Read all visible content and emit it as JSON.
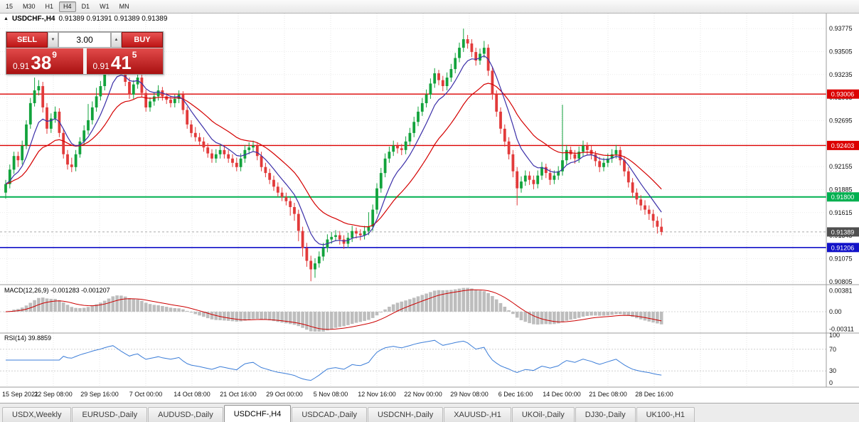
{
  "toolbar": {
    "timeframes": [
      "15",
      "M30",
      "H1",
      "H4",
      "D1",
      "W1",
      "MN"
    ],
    "active": "H4"
  },
  "chart": {
    "symbol_title": "USDCHF-,H4",
    "ohlc_text": "0.91389 0.91391 0.91389 0.91389",
    "collapse_icon": "▲"
  },
  "one_click": {
    "sell_label": "SELL",
    "buy_label": "BUY",
    "volume": "3.00",
    "spin_down_icon": "▼",
    "spin_up_icon": "▲",
    "sell_price": {
      "small": "0.91",
      "big": "38",
      "sup": "9"
    },
    "buy_price": {
      "small": "0.91",
      "big": "41",
      "sup": "5"
    }
  },
  "price_axis": {
    "values": [
      0.93775,
      0.93505,
      0.93235,
      0.92965,
      0.92695,
      0.92425,
      0.92155,
      0.91885,
      0.91615,
      0.91345,
      0.91075,
      0.90805
    ]
  },
  "hlines": [
    {
      "value": 0.93006,
      "label": "0.93006",
      "color": "#dc0000",
      "width": 1.4
    },
    {
      "value": 0.92403,
      "label": "0.92403",
      "color": "#dc0000",
      "width": 1.4
    },
    {
      "value": 0.918,
      "label": "0.91800",
      "color": "#00b050",
      "width": 2
    },
    {
      "value": 0.91206,
      "label": "0.91206",
      "color": "#1212c8",
      "width": 1.6
    }
  ],
  "bid": {
    "value": 0.91389,
    "label": "0.91389",
    "color": "#4f4f4f"
  },
  "macd": {
    "name": "MACD(12,26,9)",
    "values": "-0.001283 -0.001207",
    "axis": [
      {
        "label": "0.00381",
        "value": 0.00381
      },
      {
        "label": "0.00",
        "value": 0
      },
      {
        "label": "-0.00311",
        "value": -0.00311
      }
    ]
  },
  "rsi": {
    "name": "RSI(14)",
    "value": "39.8859",
    "axis": [
      {
        "label": "100",
        "value": 100
      },
      {
        "label": "70",
        "value": 70
      },
      {
        "label": "30",
        "value": 30
      },
      {
        "label": "0",
        "value": 0
      }
    ],
    "levels": [
      70,
      30
    ]
  },
  "time_axis": {
    "labels": [
      "15 Sep 2021",
      "22 Sep 08:00",
      "29 Sep 16:00",
      "7 Oct 00:00",
      "14 Oct 08:00",
      "21 Oct 16:00",
      "29 Oct 00:00",
      "5 Nov 08:00",
      "12 Nov 16:00",
      "22 Nov 00:00",
      "29 Nov 08:00",
      "6 Dec 16:00",
      "14 Dec 00:00",
      "21 Dec 08:00",
      "28 Dec 16:00"
    ]
  },
  "tabs": {
    "active_index": 3,
    "items": [
      "USDX,Weekly",
      "EURUSD-,Daily",
      "AUDUSD-,Daily",
      "USDCHF-,H4",
      "USDCAD-,Daily",
      "USDCNH-,Daily",
      "XAUUSD-,H1",
      "UKOil-,Daily",
      "DJ30-,Daily",
      "UK100-,H1"
    ]
  },
  "chart_data": {
    "type": "candlestick",
    "symbol": "USDCHF-",
    "timeframe": "H4",
    "price_range": [
      0.9077,
      0.9396
    ],
    "ma_periods": {
      "fast": 8,
      "slow": 21
    },
    "indicators": {
      "macd": [
        12,
        26,
        9
      ],
      "rsi": 14
    },
    "colors": {
      "up": "#12a33c",
      "down": "#e23a3a",
      "ma_fast": "#3b2fa8",
      "ma_slow": "#d40000",
      "macd_hist": "#bdbdbd",
      "macd_signal": "#cc0000",
      "rsi": "#3b7dd8"
    },
    "candles": [
      [
        0.9185,
        0.92,
        0.9178,
        0.9195
      ],
      [
        0.9195,
        0.9218,
        0.919,
        0.9212
      ],
      [
        0.9212,
        0.9233,
        0.9207,
        0.9228
      ],
      [
        0.9228,
        0.9233,
        0.9215,
        0.9223
      ],
      [
        0.9223,
        0.9246,
        0.9218,
        0.924
      ],
      [
        0.924,
        0.927,
        0.9236,
        0.9265
      ],
      [
        0.9265,
        0.9296,
        0.926,
        0.929
      ],
      [
        0.929,
        0.932,
        0.9286,
        0.9305
      ],
      [
        0.9305,
        0.9317,
        0.9299,
        0.931
      ],
      [
        0.931,
        0.9315,
        0.9279,
        0.9285
      ],
      [
        0.9285,
        0.929,
        0.9254,
        0.926
      ],
      [
        0.926,
        0.9278,
        0.9255,
        0.9272
      ],
      [
        0.9272,
        0.9286,
        0.9267,
        0.928
      ],
      [
        0.928,
        0.9284,
        0.925,
        0.9255
      ],
      [
        0.9255,
        0.926,
        0.9225,
        0.923
      ],
      [
        0.923,
        0.9235,
        0.9212,
        0.9218
      ],
      [
        0.9218,
        0.9226,
        0.9209,
        0.9215
      ],
      [
        0.9215,
        0.9235,
        0.921,
        0.923
      ],
      [
        0.923,
        0.925,
        0.9226,
        0.9245
      ],
      [
        0.9245,
        0.9264,
        0.924,
        0.9258
      ],
      [
        0.9258,
        0.9289,
        0.9253,
        0.927
      ],
      [
        0.927,
        0.9292,
        0.9265,
        0.9285
      ],
      [
        0.9285,
        0.9308,
        0.928,
        0.9298
      ],
      [
        0.9298,
        0.9316,
        0.9293,
        0.931
      ],
      [
        0.931,
        0.9334,
        0.9305,
        0.9328
      ],
      [
        0.9328,
        0.9351,
        0.9323,
        0.9345
      ],
      [
        0.9345,
        0.9368,
        0.934,
        0.936
      ],
      [
        0.936,
        0.9364,
        0.9341,
        0.9346
      ],
      [
        0.9346,
        0.935,
        0.9325,
        0.933
      ],
      [
        0.933,
        0.9335,
        0.931,
        0.9315
      ],
      [
        0.9315,
        0.932,
        0.9295,
        0.93
      ],
      [
        0.93,
        0.9317,
        0.9295,
        0.9312
      ],
      [
        0.9312,
        0.9326,
        0.9307,
        0.932
      ],
      [
        0.932,
        0.9324,
        0.9297,
        0.9302
      ],
      [
        0.9302,
        0.9306,
        0.928,
        0.9285
      ],
      [
        0.9285,
        0.9297,
        0.928,
        0.9292
      ],
      [
        0.9292,
        0.9303,
        0.9287,
        0.9298
      ],
      [
        0.9298,
        0.9311,
        0.9293,
        0.9305
      ],
      [
        0.9305,
        0.9309,
        0.9293,
        0.9298
      ],
      [
        0.9298,
        0.9302,
        0.9289,
        0.9294
      ],
      [
        0.9294,
        0.9299,
        0.9285,
        0.929
      ],
      [
        0.929,
        0.93,
        0.9285,
        0.9295
      ],
      [
        0.9295,
        0.9305,
        0.929,
        0.93
      ],
      [
        0.93,
        0.9304,
        0.9277,
        0.9282
      ],
      [
        0.9282,
        0.9286,
        0.926,
        0.9265
      ],
      [
        0.9265,
        0.927,
        0.925,
        0.9255
      ],
      [
        0.9255,
        0.9262,
        0.9245,
        0.925
      ],
      [
        0.925,
        0.9255,
        0.924,
        0.9245
      ],
      [
        0.9245,
        0.925,
        0.9233,
        0.9238
      ],
      [
        0.9238,
        0.9243,
        0.9226,
        0.9231
      ],
      [
        0.9231,
        0.9236,
        0.922,
        0.9225
      ],
      [
        0.9225,
        0.9236,
        0.922,
        0.923
      ],
      [
        0.923,
        0.9241,
        0.9225,
        0.9235
      ],
      [
        0.9235,
        0.924,
        0.9225,
        0.923
      ],
      [
        0.923,
        0.9235,
        0.922,
        0.9225
      ],
      [
        0.9225,
        0.923,
        0.9215,
        0.922
      ],
      [
        0.922,
        0.9226,
        0.921,
        0.9215
      ],
      [
        0.9215,
        0.9231,
        0.921,
        0.9225
      ],
      [
        0.9225,
        0.9241,
        0.922,
        0.9235
      ],
      [
        0.9235,
        0.9244,
        0.923,
        0.9238
      ],
      [
        0.9238,
        0.9246,
        0.9233,
        0.924
      ],
      [
        0.924,
        0.9244,
        0.9223,
        0.9228
      ],
      [
        0.9228,
        0.9233,
        0.921,
        0.9215
      ],
      [
        0.9215,
        0.922,
        0.9203,
        0.9208
      ],
      [
        0.9208,
        0.9213,
        0.9195,
        0.92
      ],
      [
        0.92,
        0.9205,
        0.9187,
        0.9192
      ],
      [
        0.9192,
        0.9197,
        0.918,
        0.9185
      ],
      [
        0.9185,
        0.9191,
        0.9175,
        0.918
      ],
      [
        0.918,
        0.9185,
        0.917,
        0.9175
      ],
      [
        0.9175,
        0.918,
        0.9158,
        0.9168
      ],
      [
        0.9168,
        0.9173,
        0.9152,
        0.916
      ],
      [
        0.916,
        0.9165,
        0.9128,
        0.914
      ],
      [
        0.914,
        0.9145,
        0.911,
        0.912
      ],
      [
        0.912,
        0.9126,
        0.9098,
        0.9105
      ],
      [
        0.9105,
        0.9111,
        0.9081,
        0.9095
      ],
      [
        0.9095,
        0.9108,
        0.9085,
        0.9102
      ],
      [
        0.9102,
        0.9116,
        0.9097,
        0.911
      ],
      [
        0.911,
        0.9126,
        0.9105,
        0.912
      ],
      [
        0.912,
        0.9136,
        0.9115,
        0.913
      ],
      [
        0.913,
        0.9139,
        0.9125,
        0.9133
      ],
      [
        0.9133,
        0.9141,
        0.9128,
        0.9135
      ],
      [
        0.9135,
        0.914,
        0.9124,
        0.913
      ],
      [
        0.913,
        0.9135,
        0.9119,
        0.9125
      ],
      [
        0.9125,
        0.9138,
        0.912,
        0.9132
      ],
      [
        0.9132,
        0.9146,
        0.9127,
        0.914
      ],
      [
        0.914,
        0.9144,
        0.9131,
        0.9137
      ],
      [
        0.9137,
        0.9142,
        0.9129,
        0.9135
      ],
      [
        0.9135,
        0.9146,
        0.913,
        0.914
      ],
      [
        0.914,
        0.9162,
        0.9135,
        0.9145
      ],
      [
        0.9145,
        0.9171,
        0.914,
        0.9165
      ],
      [
        0.9165,
        0.9196,
        0.916,
        0.919
      ],
      [
        0.919,
        0.9214,
        0.9185,
        0.9208
      ],
      [
        0.9208,
        0.9231,
        0.9203,
        0.9225
      ],
      [
        0.9225,
        0.9239,
        0.922,
        0.9233
      ],
      [
        0.9233,
        0.9246,
        0.9228,
        0.924
      ],
      [
        0.924,
        0.9244,
        0.9231,
        0.9237
      ],
      [
        0.9237,
        0.9242,
        0.9229,
        0.9235
      ],
      [
        0.9235,
        0.9251,
        0.923,
        0.9245
      ],
      [
        0.9245,
        0.9261,
        0.924,
        0.9255
      ],
      [
        0.9255,
        0.9274,
        0.925,
        0.9268
      ],
      [
        0.9268,
        0.9286,
        0.9263,
        0.928
      ],
      [
        0.928,
        0.9296,
        0.9275,
        0.929
      ],
      [
        0.929,
        0.9306,
        0.9285,
        0.93
      ],
      [
        0.93,
        0.9319,
        0.9295,
        0.9313
      ],
      [
        0.9313,
        0.9331,
        0.9308,
        0.9325
      ],
      [
        0.9325,
        0.9329,
        0.9311,
        0.9317
      ],
      [
        0.9317,
        0.9322,
        0.9304,
        0.931
      ],
      [
        0.931,
        0.9326,
        0.9305,
        0.932
      ],
      [
        0.932,
        0.9336,
        0.9315,
        0.933
      ],
      [
        0.933,
        0.9349,
        0.9325,
        0.9343
      ],
      [
        0.9343,
        0.9361,
        0.9338,
        0.9355
      ],
      [
        0.9355,
        0.93775,
        0.935,
        0.9365
      ],
      [
        0.9365,
        0.937,
        0.9354,
        0.936
      ],
      [
        0.936,
        0.9365,
        0.9344,
        0.935
      ],
      [
        0.935,
        0.9355,
        0.9334,
        0.934
      ],
      [
        0.934,
        0.9354,
        0.9335,
        0.9348
      ],
      [
        0.9348,
        0.9363,
        0.9343,
        0.9355
      ],
      [
        0.9355,
        0.9359,
        0.9322,
        0.9328
      ],
      [
        0.9328,
        0.9333,
        0.9294,
        0.93
      ],
      [
        0.93,
        0.9305,
        0.9274,
        0.928
      ],
      [
        0.928,
        0.9285,
        0.9254,
        0.926
      ],
      [
        0.926,
        0.9265,
        0.9239,
        0.9245
      ],
      [
        0.9245,
        0.925,
        0.9224,
        0.923
      ],
      [
        0.923,
        0.9235,
        0.9203,
        0.921
      ],
      [
        0.921,
        0.9215,
        0.917,
        0.919
      ],
      [
        0.919,
        0.9204,
        0.9185,
        0.9198
      ],
      [
        0.9198,
        0.9211,
        0.9193,
        0.9205
      ],
      [
        0.9205,
        0.921,
        0.9194,
        0.92
      ],
      [
        0.92,
        0.9205,
        0.9189,
        0.9195
      ],
      [
        0.9195,
        0.9211,
        0.919,
        0.9205
      ],
      [
        0.9205,
        0.9221,
        0.92,
        0.9215
      ],
      [
        0.9215,
        0.9219,
        0.9202,
        0.9208
      ],
      [
        0.9208,
        0.9213,
        0.9194,
        0.92
      ],
      [
        0.92,
        0.9211,
        0.9195,
        0.9205
      ],
      [
        0.9205,
        0.9216,
        0.92,
        0.921
      ],
      [
        0.921,
        0.9288,
        0.9205,
        0.9223
      ],
      [
        0.9223,
        0.9241,
        0.9218,
        0.9235
      ],
      [
        0.9235,
        0.9239,
        0.9224,
        0.923
      ],
      [
        0.923,
        0.9235,
        0.9219,
        0.9225
      ],
      [
        0.9225,
        0.9239,
        0.922,
        0.9233
      ],
      [
        0.9233,
        0.9246,
        0.9228,
        0.924
      ],
      [
        0.924,
        0.9244,
        0.9229,
        0.9235
      ],
      [
        0.9235,
        0.924,
        0.9224,
        0.923
      ],
      [
        0.923,
        0.9234,
        0.9216,
        0.9222
      ],
      [
        0.9222,
        0.9227,
        0.9209,
        0.9215
      ],
      [
        0.9215,
        0.9226,
        0.921,
        0.922
      ],
      [
        0.922,
        0.9231,
        0.9215,
        0.9225
      ],
      [
        0.9225,
        0.9236,
        0.922,
        0.923
      ],
      [
        0.923,
        0.9241,
        0.9225,
        0.9235
      ],
      [
        0.9235,
        0.9239,
        0.9217,
        0.9223
      ],
      [
        0.9223,
        0.9228,
        0.9204,
        0.921
      ],
      [
        0.921,
        0.9215,
        0.9191,
        0.9197
      ],
      [
        0.9197,
        0.9202,
        0.9179,
        0.9185
      ],
      [
        0.9185,
        0.919,
        0.9171,
        0.9177
      ],
      [
        0.9177,
        0.9182,
        0.9164,
        0.917
      ],
      [
        0.917,
        0.9176,
        0.9159,
        0.9165
      ],
      [
        0.9165,
        0.917,
        0.9153,
        0.916
      ],
      [
        0.916,
        0.9165,
        0.9144,
        0.9152
      ],
      [
        0.9152,
        0.9157,
        0.9137,
        0.9145
      ],
      [
        0.9145,
        0.9155,
        0.9135,
        0.91389
      ]
    ]
  }
}
